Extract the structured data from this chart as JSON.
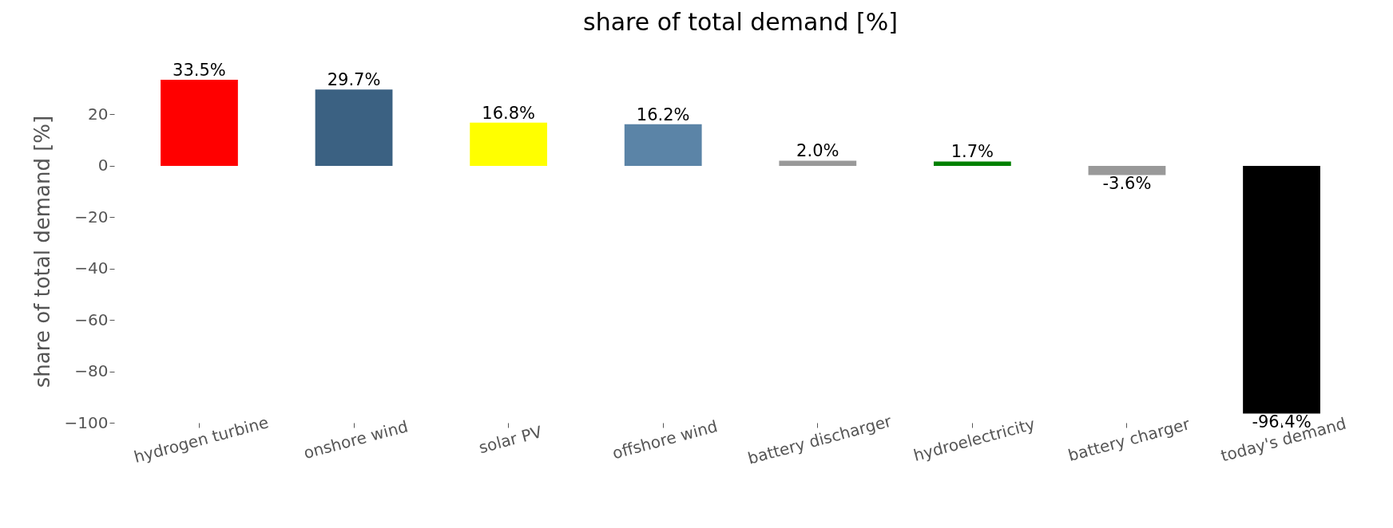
{
  "chart_data": {
    "type": "bar",
    "title": "share of total demand [%]",
    "ylabel": "share of total demand [%]",
    "categories": [
      "hydrogen turbine",
      "onshore wind",
      "solar PV",
      "offshore wind",
      "battery discharger",
      "hydroelectricity",
      "battery charger",
      "today's demand"
    ],
    "values": [
      33.5,
      29.7,
      16.8,
      16.2,
      2.0,
      1.7,
      -3.6,
      -96.4
    ],
    "colors": [
      "#ff0000",
      "#3b6182",
      "#ffff00",
      "#5b84a7",
      "#999999",
      "#008000",
      "#999999",
      "#000000"
    ],
    "value_labels": [
      "33.5%",
      "29.7%",
      "16.8%",
      "16.2%",
      "2.0%",
      "1.7%",
      "-3.6%",
      "-96.4%"
    ],
    "ylim": [
      -100,
      33.5
    ],
    "yticks": [
      -100,
      -80,
      -60,
      -40,
      -20,
      0,
      20
    ],
    "grid": false,
    "legend": false
  }
}
